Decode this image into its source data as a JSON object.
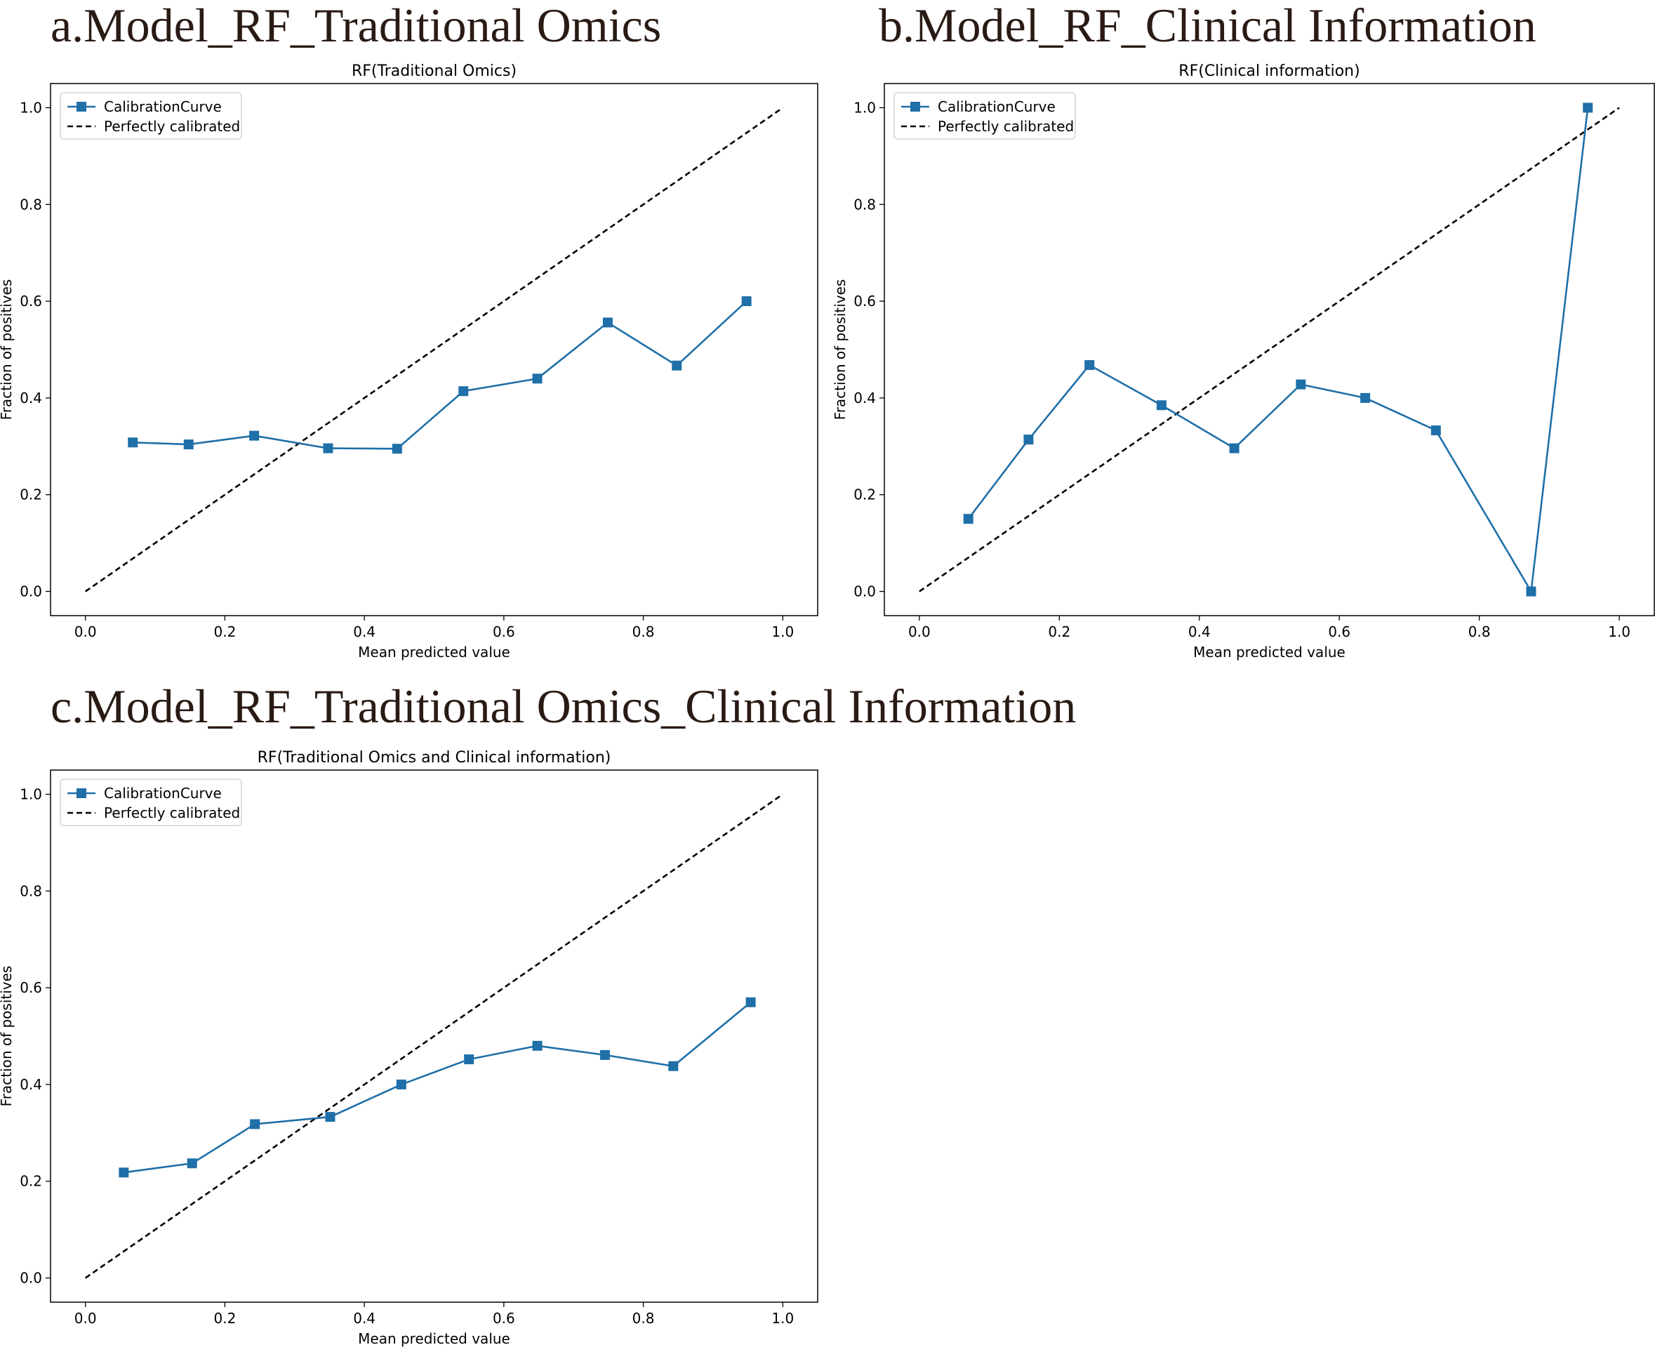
{
  "colors": {
    "series": "#1f6fa8",
    "reference": "#000000",
    "heading": "#2a1a14"
  },
  "chart_data": [
    {
      "type": "line",
      "heading": "a.Model_RF_Traditional Omics",
      "title": "RF(Traditional Omics)",
      "xlabel": "Mean predicted value",
      "ylabel": "Fraction of positives",
      "xlim": [
        -0.05,
        1.05
      ],
      "ylim": [
        -0.05,
        1.05
      ],
      "xticks": [
        0.0,
        0.2,
        0.4,
        0.6,
        0.8,
        1.0
      ],
      "yticks": [
        0.0,
        0.2,
        0.4,
        0.6,
        0.8,
        1.0
      ],
      "tick_labels": [
        "0.0",
        "0.2",
        "0.4",
        "0.6",
        "0.8",
        "1.0"
      ],
      "legend_position": "top-left",
      "series": [
        {
          "name": "CalibrationCurve",
          "marker": "square",
          "x": [
            0.068,
            0.148,
            0.242,
            0.348,
            0.447,
            0.542,
            0.648,
            0.749,
            0.848,
            0.948
          ],
          "y": [
            0.308,
            0.304,
            0.322,
            0.296,
            0.295,
            0.414,
            0.44,
            0.556,
            0.467,
            0.6
          ]
        },
        {
          "name": "Perfectly calibrated",
          "style": "dashed",
          "x": [
            0.0,
            1.0
          ],
          "y": [
            0.0,
            1.0
          ]
        }
      ]
    },
    {
      "type": "line",
      "heading": "b.Model_RF_Clinical Information",
      "title": "RF(Clinical information)",
      "xlabel": "Mean predicted value",
      "ylabel": "Fraction of positives",
      "xlim": [
        -0.05,
        1.05
      ],
      "ylim": [
        -0.05,
        1.05
      ],
      "xticks": [
        0.0,
        0.2,
        0.4,
        0.6,
        0.8,
        1.0
      ],
      "yticks": [
        0.0,
        0.2,
        0.4,
        0.6,
        0.8,
        1.0
      ],
      "tick_labels": [
        "0.0",
        "0.2",
        "0.4",
        "0.6",
        "0.8",
        "1.0"
      ],
      "legend_position": "top-left",
      "series": [
        {
          "name": "CalibrationCurve",
          "marker": "square",
          "x": [
            0.07,
            0.156,
            0.243,
            0.346,
            0.45,
            0.545,
            0.637,
            0.738,
            0.874,
            0.955
          ],
          "y": [
            0.15,
            0.314,
            0.468,
            0.385,
            0.296,
            0.428,
            0.4,
            0.333,
            0.0,
            1.0
          ]
        },
        {
          "name": "Perfectly calibrated",
          "style": "dashed",
          "x": [
            0.0,
            1.0
          ],
          "y": [
            0.0,
            1.0
          ]
        }
      ]
    },
    {
      "type": "line",
      "heading": "c.Model_RF_Traditional Omics_Clinical Information",
      "title": "RF(Traditional Omics and Clinical information)",
      "xlabel": "Mean predicted value",
      "ylabel": "Fraction of positives",
      "xlim": [
        -0.05,
        1.05
      ],
      "ylim": [
        -0.05,
        1.05
      ],
      "xticks": [
        0.0,
        0.2,
        0.4,
        0.6,
        0.8,
        1.0
      ],
      "yticks": [
        0.0,
        0.2,
        0.4,
        0.6,
        0.8,
        1.0
      ],
      "tick_labels": [
        "0.0",
        "0.2",
        "0.4",
        "0.6",
        "0.8",
        "1.0"
      ],
      "legend_position": "top-left",
      "series": [
        {
          "name": "CalibrationCurve",
          "marker": "square",
          "x": [
            0.055,
            0.153,
            0.243,
            0.351,
            0.453,
            0.55,
            0.648,
            0.745,
            0.843,
            0.954
          ],
          "y": [
            0.218,
            0.237,
            0.318,
            0.333,
            0.4,
            0.452,
            0.48,
            0.461,
            0.438,
            0.57
          ]
        },
        {
          "name": "Perfectly calibrated",
          "style": "dashed",
          "x": [
            0.0,
            1.0
          ],
          "y": [
            0.0,
            1.0
          ]
        }
      ]
    }
  ]
}
